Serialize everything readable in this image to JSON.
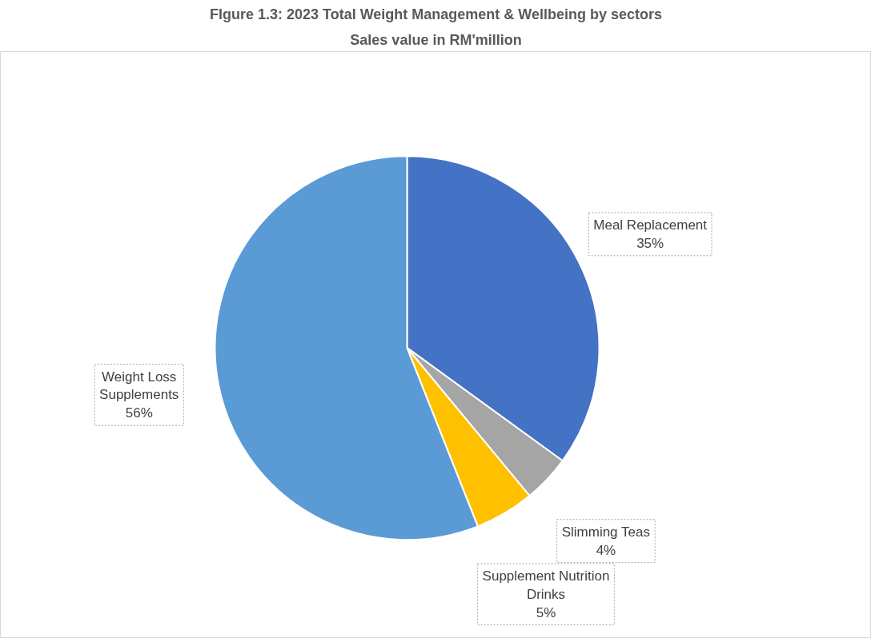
{
  "chart_data": {
    "type": "pie",
    "title": "FIgure 1.3: 2023 Total Weight Management & Wellbeing by sectors",
    "subtitle": "Sales value in RM'million",
    "categories": [
      "Meal Replacement",
      "Slimming Teas",
      "Supplement Nutrition Drinks",
      "Weight Loss Supplements"
    ],
    "values": [
      35,
      4,
      5,
      56
    ],
    "colors": [
      "#4472c4",
      "#a5a5a5",
      "#ffc000",
      "#5b9bd5"
    ],
    "value_labels": [
      "35%",
      "4%",
      "5%",
      "56%"
    ],
    "legend": false
  }
}
